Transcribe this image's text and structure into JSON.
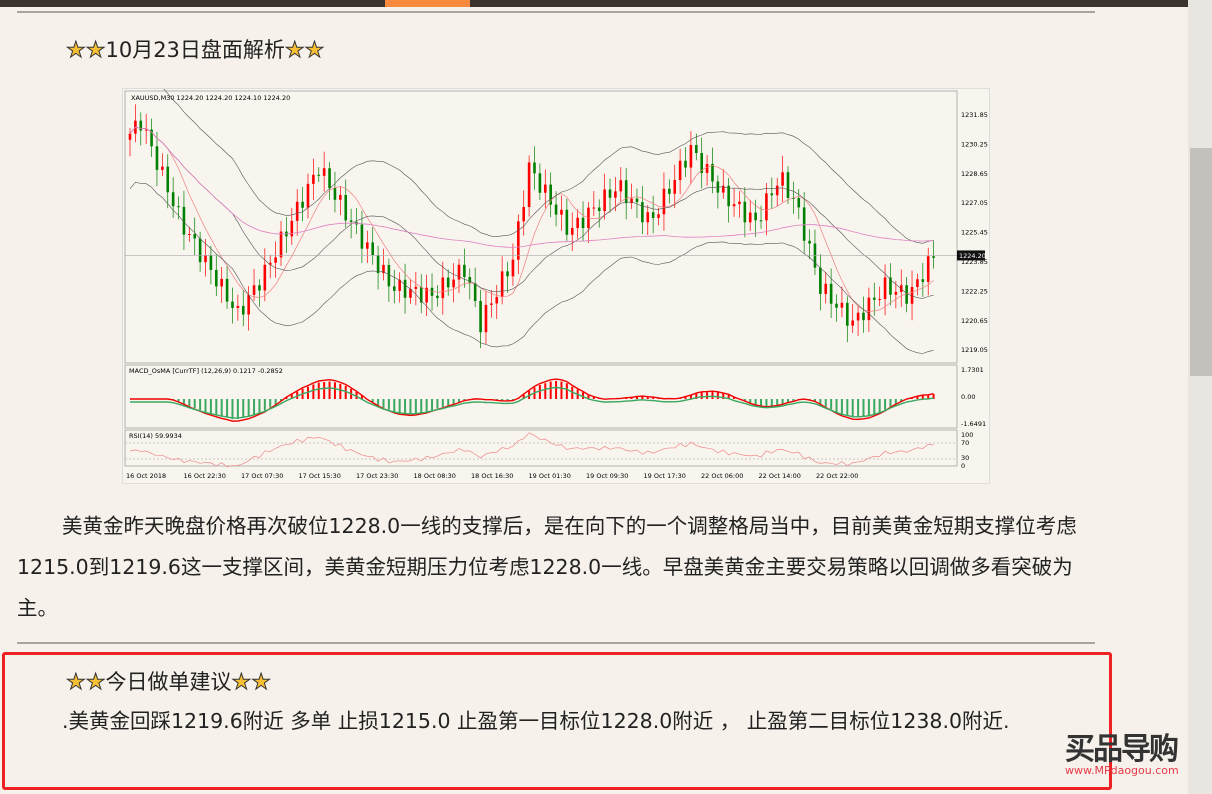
{
  "section1": {
    "title": "10月23日盘面解析",
    "star_icon": "star-icon"
  },
  "chart": {
    "header": "XAUUSD,M30  1224.20 1224.20 1224.10 1224.20",
    "price_ticks": [
      "1231.85",
      "1230.25",
      "1228.65",
      "1227.05",
      "1225.45",
      "1223.85",
      "1222.25",
      "1220.65",
      "1219.05"
    ],
    "current_price": "1224.20",
    "macd_label": "MACD_OsMA [CurrTF] (12,26,9) 0.1217 -0.2852",
    "macd_ticks": [
      "1.7301",
      "0.00",
      "-1.6491"
    ],
    "rsi_label": "RSI(14) 59.9934",
    "rsi_ticks": [
      "100",
      "70",
      "30",
      "0"
    ],
    "time_labels": [
      "16 Oct 2018",
      "16 Oct 22:30",
      "17 Oct 07:30",
      "17 Oct 15:30",
      "17 Oct 23:30",
      "18 Oct 08:30",
      "18 Oct 16:30",
      "19 Oct 01:30",
      "19 Oct 09:30",
      "19 Oct 17:30",
      "22 Oct 06:00",
      "22 Oct 14:00",
      "22 Oct 22:00"
    ],
    "price_anchors": [
      [
        0,
        1230.5
      ],
      [
        0.02,
        1231.5
      ],
      [
        0.07,
        1226
      ],
      [
        0.14,
        1221
      ],
      [
        0.17,
        1223
      ],
      [
        0.24,
        1229
      ],
      [
        0.28,
        1226
      ],
      [
        0.33,
        1222.5
      ],
      [
        0.38,
        1222
      ],
      [
        0.42,
        1223.5
      ],
      [
        0.44,
        1220.5
      ],
      [
        0.48,
        1224
      ],
      [
        0.5,
        1229
      ],
      [
        0.55,
        1225.5
      ],
      [
        0.61,
        1228
      ],
      [
        0.65,
        1226
      ],
      [
        0.7,
        1230
      ],
      [
        0.74,
        1227.5
      ],
      [
        0.78,
        1226
      ],
      [
        0.81,
        1228.5
      ],
      [
        0.83,
        1227
      ],
      [
        0.86,
        1222.5
      ],
      [
        0.9,
        1220.5
      ],
      [
        0.94,
        1222.5
      ],
      [
        0.97,
        1222
      ],
      [
        1,
        1224.2
      ]
    ],
    "up_color": "#ff0000",
    "down_color": "#008000"
  },
  "analysis": "美黄金昨天晚盘价格再次破位1228.0一线的支撑后，是在向下的一个调整格局当中，目前美黄金短期支撑位考虑1215.0到1219.6这一支撑区间，美黄金短期压力位考虑1228.0一线。早盘美黄金主要交易策略以回调做多看突破为主。",
  "section2": {
    "title": "今日做单建议",
    "text": ".美黄金回踩1219.6附近 多单 止损1215.0 止盈第一目标位1228.0附近 ， 止盈第二目标位1238.0附近."
  },
  "watermark": {
    "brand": "买品导购",
    "url": "www.MPdaogou.com"
  }
}
